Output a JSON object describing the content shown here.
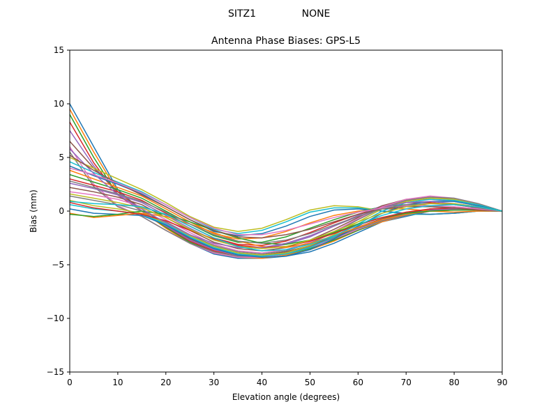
{
  "figure": {
    "suptitle_left": "SITZ1",
    "suptitle_right": "NONE"
  },
  "chart_data": {
    "type": "line",
    "title": "Antenna Phase Biases: GPS-L5",
    "xlabel": "Elevation angle (degrees)",
    "ylabel": "Bias (mm)",
    "xlim": [
      0,
      90
    ],
    "ylim": [
      -15,
      15
    ],
    "xticks": [
      0,
      10,
      20,
      30,
      40,
      50,
      60,
      70,
      80,
      90
    ],
    "yticks": [
      -15,
      -10,
      -5,
      0,
      5,
      10,
      15
    ],
    "xtick_labels": [
      "0",
      "10",
      "20",
      "30",
      "40",
      "50",
      "60",
      "70",
      "80",
      "90"
    ],
    "ytick_labels": [
      "−15",
      "−10",
      "−5",
      "0",
      "5",
      "10",
      "15"
    ],
    "grid": false,
    "legend": "none",
    "colors": [
      "#1f77b4",
      "#ff7f0e",
      "#2ca02c",
      "#d62728",
      "#9467bd",
      "#8c564b",
      "#e377c2",
      "#7f7f7f",
      "#bcbd22",
      "#17becf"
    ],
    "x": [
      0,
      5,
      10,
      15,
      20,
      25,
      30,
      35,
      40,
      45,
      50,
      55,
      60,
      65,
      70,
      75,
      80,
      85,
      90
    ],
    "series": [
      {
        "values": [
          10.0,
          6.0,
          2.0,
          0.0,
          -1.5,
          -3.0,
          -4.0,
          -4.4,
          -4.4,
          -4.2,
          -3.8,
          -3.0,
          -2.0,
          -1.0,
          -0.5,
          0.0,
          0.2,
          0.3,
          0.0
        ]
      },
      {
        "values": [
          9.5,
          5.5,
          1.8,
          0.0,
          -1.6,
          -3.0,
          -3.9,
          -4.3,
          -4.4,
          -4.1,
          -3.6,
          -2.8,
          -1.8,
          -1.0,
          -0.4,
          0.0,
          0.2,
          0.2,
          0.0
        ]
      },
      {
        "values": [
          9.0,
          5.0,
          1.5,
          0.0,
          -1.5,
          -2.9,
          -3.8,
          -4.2,
          -4.2,
          -4.0,
          -3.5,
          -2.7,
          -1.8,
          -0.9,
          -0.3,
          0.1,
          0.2,
          0.2,
          0.0
        ]
      },
      {
        "values": [
          8.3,
          4.5,
          1.5,
          0.0,
          -1.4,
          -2.8,
          -3.7,
          -4.2,
          -4.2,
          -3.9,
          -3.4,
          -2.6,
          -1.7,
          -0.8,
          -0.3,
          0.1,
          0.2,
          0.2,
          0.0
        ]
      },
      {
        "values": [
          7.5,
          4.2,
          1.6,
          0.0,
          -1.4,
          -2.7,
          -3.6,
          -4.1,
          -4.2,
          -3.9,
          -3.3,
          -2.5,
          -1.6,
          -0.8,
          -0.2,
          0.1,
          0.2,
          0.2,
          0.0
        ]
      },
      {
        "values": [
          6.5,
          4.0,
          1.8,
          0.2,
          -1.3,
          -2.6,
          -3.5,
          -4.0,
          -4.1,
          -3.8,
          -3.2,
          -2.4,
          -1.5,
          -0.7,
          -0.2,
          0.2,
          0.3,
          0.2,
          0.0
        ]
      },
      {
        "values": [
          6.0,
          2.5,
          0.5,
          -0.5,
          -1.8,
          -3.0,
          -3.9,
          -4.3,
          -4.3,
          -4.0,
          -3.4,
          -2.6,
          -1.7,
          -0.9,
          -0.4,
          0.0,
          0.1,
          0.1,
          0.0
        ]
      },
      {
        "values": [
          5.5,
          2.3,
          0.4,
          -0.5,
          -1.8,
          -3.0,
          -3.8,
          -4.2,
          -4.2,
          -3.9,
          -3.3,
          -2.5,
          -1.6,
          -0.9,
          -0.4,
          0.0,
          0.1,
          0.1,
          0.0
        ]
      },
      {
        "values": [
          5.0,
          4.0,
          3.0,
          2.0,
          0.8,
          -0.5,
          -1.5,
          -1.9,
          -1.6,
          -0.8,
          0.1,
          0.5,
          0.4,
          0.0,
          -0.3,
          -0.3,
          -0.2,
          0.0,
          0.0
        ]
      },
      {
        "values": [
          4.6,
          3.6,
          2.7,
          1.8,
          0.6,
          -0.6,
          -1.7,
          -2.1,
          -1.8,
          -1.0,
          -0.1,
          0.3,
          0.3,
          0.0,
          -0.3,
          -0.3,
          -0.2,
          0.0,
          0.0
        ]
      },
      {
        "values": [
          4.2,
          3.3,
          2.5,
          1.6,
          0.4,
          -0.8,
          -1.9,
          -2.3,
          -2.1,
          -1.4,
          -0.5,
          0.1,
          0.2,
          0.0,
          -0.2,
          -0.3,
          -0.2,
          0.0,
          0.0
        ]
      },
      {
        "values": [
          3.8,
          3.0,
          2.2,
          1.4,
          0.2,
          -1.0,
          -2.1,
          -2.6,
          -2.5,
          -1.9,
          -1.1,
          -0.4,
          0.0,
          0.2,
          0.2,
          0.0,
          -0.1,
          0.0,
          0.0
        ]
      },
      {
        "values": [
          3.4,
          2.7,
          2.0,
          1.2,
          0.0,
          -1.2,
          -2.3,
          -2.9,
          -2.9,
          -2.4,
          -1.6,
          -0.8,
          -0.1,
          0.4,
          0.6,
          0.5,
          0.3,
          0.1,
          0.0
        ]
      },
      {
        "values": [
          3.0,
          2.4,
          1.8,
          1.0,
          -0.2,
          -1.4,
          -2.5,
          -3.1,
          -3.2,
          -2.8,
          -2.0,
          -1.1,
          -0.3,
          0.4,
          0.8,
          0.8,
          0.6,
          0.3,
          0.0
        ]
      },
      {
        "values": [
          2.6,
          2.1,
          1.5,
          0.8,
          -0.4,
          -1.6,
          -2.7,
          -3.3,
          -3.5,
          -3.1,
          -2.4,
          -1.4,
          -0.4,
          0.5,
          1.0,
          1.1,
          0.9,
          0.5,
          0.0
        ]
      },
      {
        "values": [
          2.2,
          1.8,
          1.3,
          0.6,
          -0.6,
          -1.8,
          -2.9,
          -3.5,
          -3.7,
          -3.4,
          -2.7,
          -1.7,
          -0.6,
          0.5,
          1.1,
          1.3,
          1.1,
          0.6,
          0.0
        ]
      },
      {
        "values": [
          1.8,
          1.5,
          1.1,
          0.4,
          -0.8,
          -2.0,
          -3.1,
          -3.7,
          -3.9,
          -3.6,
          -2.9,
          -1.9,
          -0.7,
          0.4,
          1.1,
          1.4,
          1.2,
          0.7,
          0.0
        ]
      },
      {
        "values": [
          1.4,
          1.0,
          0.6,
          0.0,
          -1.0,
          -2.2,
          -3.2,
          -3.8,
          -4.0,
          -3.7,
          -3.0,
          -2.0,
          -0.8,
          0.3,
          1.0,
          1.3,
          1.2,
          0.7,
          0.0
        ]
      },
      {
        "values": [
          1.0,
          0.5,
          0.2,
          -0.2,
          -1.1,
          -2.3,
          -3.3,
          -3.9,
          -4.1,
          -3.9,
          -3.2,
          -2.2,
          -1.0,
          0.2,
          0.9,
          1.2,
          1.1,
          0.6,
          0.0
        ]
      },
      {
        "values": [
          0.6,
          0.2,
          0.0,
          -0.3,
          -1.2,
          -2.4,
          -3.4,
          -4.0,
          -4.2,
          -4.0,
          -3.4,
          -2.4,
          -1.2,
          0.0,
          0.8,
          1.1,
          1.0,
          0.6,
          0.0
        ]
      },
      {
        "values": [
          0.2,
          -0.2,
          -0.3,
          -0.4,
          -1.3,
          -2.5,
          -3.5,
          -4.1,
          -4.3,
          -4.2,
          -3.6,
          -2.6,
          -1.4,
          -0.2,
          0.6,
          0.9,
          0.9,
          0.5,
          0.0
        ]
      },
      {
        "values": [
          -0.2,
          -0.6,
          -0.4,
          -0.2,
          -0.5,
          -1.2,
          -2.0,
          -2.8,
          -3.3,
          -3.4,
          -3.0,
          -2.3,
          -1.5,
          -0.8,
          -0.3,
          0.0,
          0.1,
          0.1,
          0.0
        ]
      },
      {
        "values": [
          -0.3,
          -0.5,
          -0.3,
          0.0,
          -0.3,
          -1.0,
          -1.8,
          -2.5,
          -3.0,
          -3.1,
          -2.7,
          -2.0,
          -1.2,
          -0.6,
          -0.2,
          0.0,
          0.1,
          0.1,
          0.0
        ]
      },
      {
        "values": [
          0.8,
          0.3,
          0.0,
          -0.3,
          -0.9,
          -1.8,
          -2.6,
          -3.2,
          -3.4,
          -3.3,
          -2.8,
          -2.1,
          -1.3,
          -0.6,
          -0.1,
          0.2,
          0.3,
          0.2,
          0.0
        ]
      },
      {
        "values": [
          5.8,
          3.5,
          1.5,
          0.2,
          -1.1,
          -2.2,
          -3.0,
          -3.4,
          -3.4,
          -3.0,
          -2.3,
          -1.4,
          -0.5,
          0.3,
          0.8,
          0.9,
          0.7,
          0.4,
          0.0
        ]
      },
      {
        "values": [
          5.2,
          3.8,
          2.6,
          1.5,
          0.4,
          -0.8,
          -1.8,
          -2.4,
          -2.5,
          -2.2,
          -1.7,
          -1.0,
          -0.3,
          0.2,
          0.4,
          0.4,
          0.3,
          0.1,
          0.0
        ]
      },
      {
        "values": [
          4.0,
          3.4,
          2.6,
          1.7,
          0.6,
          -0.6,
          -1.6,
          -2.2,
          -2.2,
          -1.8,
          -1.2,
          -0.6,
          -0.1,
          0.3,
          0.5,
          0.5,
          0.4,
          0.2,
          0.0
        ]
      },
      {
        "values": [
          2.8,
          2.2,
          1.6,
          0.9,
          -0.1,
          -1.2,
          -2.2,
          -2.8,
          -3.0,
          -2.7,
          -2.1,
          -1.3,
          -0.5,
          0.2,
          0.6,
          0.7,
          0.6,
          0.3,
          0.0
        ]
      },
      {
        "values": [
          1.6,
          1.2,
          0.8,
          0.3,
          -0.6,
          -1.7,
          -2.7,
          -3.3,
          -3.5,
          -3.3,
          -2.7,
          -1.9,
          -1.0,
          -0.2,
          0.4,
          0.7,
          0.7,
          0.4,
          0.0
        ]
      },
      {
        "values": [
          0.9,
          0.7,
          0.6,
          0.4,
          -0.3,
          -1.4,
          -2.5,
          -3.3,
          -3.7,
          -3.6,
          -3.1,
          -2.3,
          -1.3,
          -0.4,
          0.2,
          0.5,
          0.6,
          0.4,
          0.0
        ]
      }
    ]
  }
}
